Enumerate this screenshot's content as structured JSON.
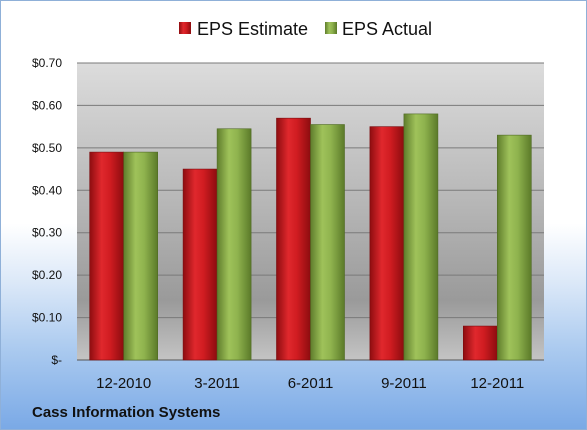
{
  "company": "Cass Information Systems",
  "colors": {
    "estimate": "#c8171c",
    "actual": "#8aad4a"
  },
  "chart_data": {
    "type": "bar",
    "categories": [
      "12-2010",
      "3-2011",
      "6-2011",
      "9-2011",
      "12-2011"
    ],
    "series": [
      {
        "name": "EPS Estimate",
        "values": [
          0.49,
          0.45,
          0.57,
          0.55,
          0.08
        ]
      },
      {
        "name": "EPS Actual",
        "values": [
          0.49,
          0.545,
          0.555,
          0.58,
          0.53
        ]
      }
    ],
    "y_ticks": [
      "$-",
      "$0.10",
      "$0.20",
      "$0.30",
      "$0.40",
      "$0.50",
      "$0.60",
      "$0.70"
    ],
    "ylim": [
      0,
      0.7
    ],
    "grid": true,
    "legend_position": "top"
  }
}
